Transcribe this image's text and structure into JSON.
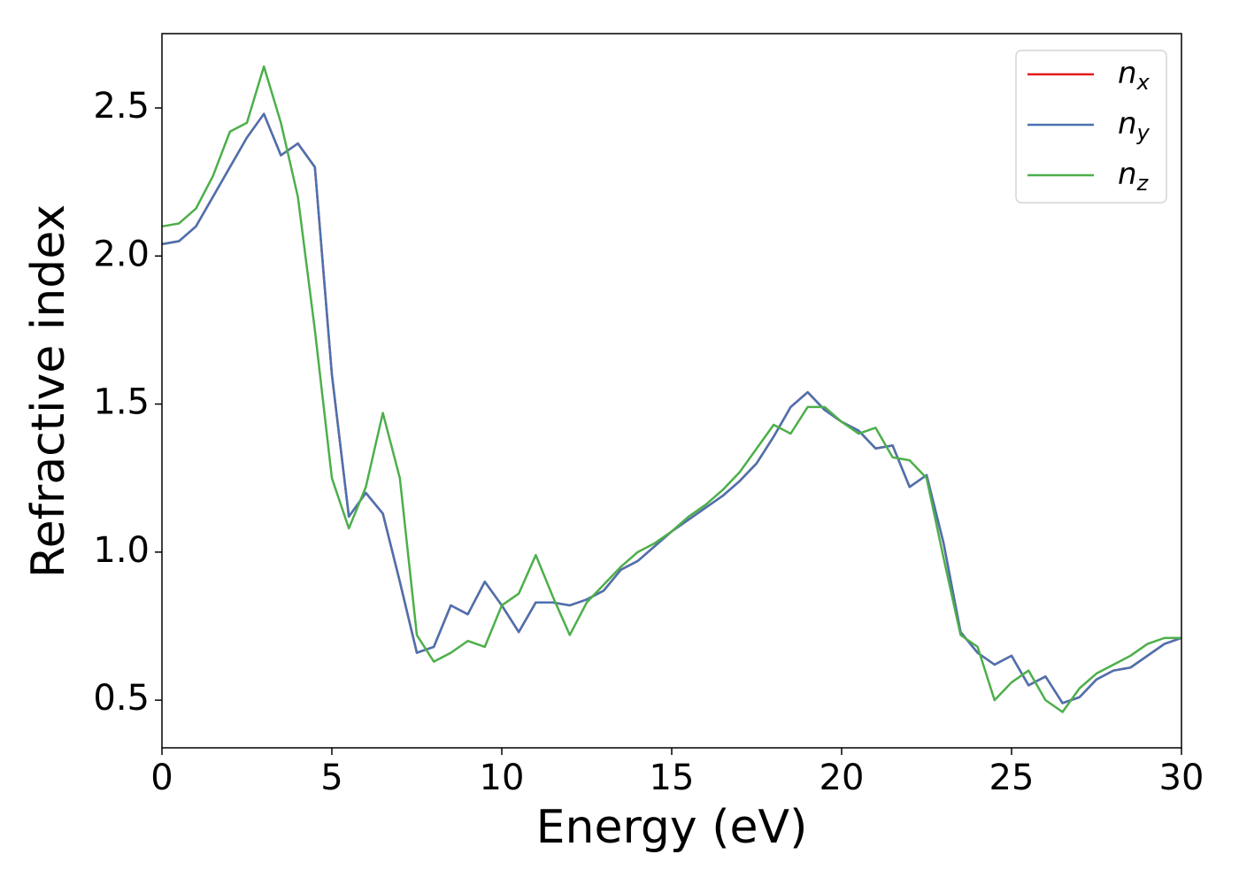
{
  "chart_data": {
    "type": "line",
    "xlabel": "Energy (eV)",
    "ylabel": "Refractive index",
    "x": [
      0,
      0.5,
      1,
      1.5,
      2,
      2.5,
      3,
      3.5,
      4,
      4.5,
      5,
      5.5,
      6,
      6.5,
      7,
      7.5,
      8,
      8.5,
      9,
      9.5,
      10,
      10.5,
      11,
      11.5,
      12,
      12.5,
      13,
      13.5,
      14,
      14.5,
      15,
      15.5,
      16,
      16.5,
      17,
      17.5,
      18,
      18.5,
      19,
      19.5,
      20,
      20.5,
      21,
      21.5,
      22,
      22.5,
      23,
      23.5,
      24,
      24.5,
      25,
      25.5,
      26,
      26.5,
      27,
      27.5,
      28,
      28.5,
      29,
      29.5,
      30
    ],
    "series": [
      {
        "name": "nx",
        "color": "#e41a1c",
        "values": [
          2.04,
          2.05,
          2.1,
          2.2,
          2.3,
          2.4,
          2.48,
          2.34,
          2.38,
          2.3,
          1.6,
          1.12,
          1.2,
          1.13,
          0.9,
          0.66,
          0.68,
          0.82,
          0.79,
          0.9,
          0.82,
          0.73,
          0.83,
          0.83,
          0.82,
          0.84,
          0.87,
          0.94,
          0.97,
          1.02,
          1.07,
          1.11,
          1.15,
          1.19,
          1.24,
          1.3,
          1.39,
          1.49,
          1.54,
          1.48,
          1.44,
          1.41,
          1.35,
          1.36,
          1.22,
          1.26,
          1.03,
          0.73,
          0.66,
          0.62,
          0.65,
          0.55,
          0.58,
          0.49,
          0.51,
          0.57,
          0.6,
          0.61,
          0.65,
          0.69,
          0.71
        ]
      },
      {
        "name": "ny",
        "color": "#4a72b0",
        "values": [
          2.04,
          2.05,
          2.1,
          2.2,
          2.3,
          2.4,
          2.48,
          2.34,
          2.38,
          2.3,
          1.6,
          1.12,
          1.2,
          1.13,
          0.9,
          0.66,
          0.68,
          0.82,
          0.79,
          0.9,
          0.82,
          0.73,
          0.83,
          0.83,
          0.82,
          0.84,
          0.87,
          0.94,
          0.97,
          1.02,
          1.07,
          1.11,
          1.15,
          1.19,
          1.24,
          1.3,
          1.39,
          1.49,
          1.54,
          1.48,
          1.44,
          1.41,
          1.35,
          1.36,
          1.22,
          1.26,
          1.03,
          0.73,
          0.66,
          0.62,
          0.65,
          0.55,
          0.58,
          0.49,
          0.51,
          0.57,
          0.6,
          0.61,
          0.65,
          0.69,
          0.71
        ]
      },
      {
        "name": "nz",
        "color": "#4daf4a",
        "values": [
          2.1,
          2.11,
          2.16,
          2.27,
          2.42,
          2.45,
          2.64,
          2.45,
          2.2,
          1.75,
          1.25,
          1.08,
          1.22,
          1.47,
          1.25,
          0.72,
          0.63,
          0.66,
          0.7,
          0.68,
          0.82,
          0.86,
          0.99,
          0.85,
          0.72,
          0.83,
          0.89,
          0.95,
          1.0,
          1.03,
          1.07,
          1.12,
          1.16,
          1.21,
          1.27,
          1.35,
          1.43,
          1.4,
          1.49,
          1.49,
          1.44,
          1.4,
          1.42,
          1.32,
          1.31,
          1.25,
          0.98,
          0.72,
          0.68,
          0.5,
          0.56,
          0.6,
          0.5,
          0.46,
          0.54,
          0.59,
          0.62,
          0.65,
          0.69,
          0.71,
          0.71
        ]
      }
    ],
    "xlim": [
      0,
      30
    ],
    "xticks": [
      0,
      5,
      10,
      15,
      20,
      25,
      30
    ],
    "ylim": [
      0.339,
      2.751
    ],
    "yticks": [
      0.5,
      {
        "value": 1,
        "label": "1.0"
      },
      1.5,
      {
        "value": 2,
        "label": "2.0"
      },
      2.5
    ],
    "grid": false,
    "legend": "upper right"
  }
}
